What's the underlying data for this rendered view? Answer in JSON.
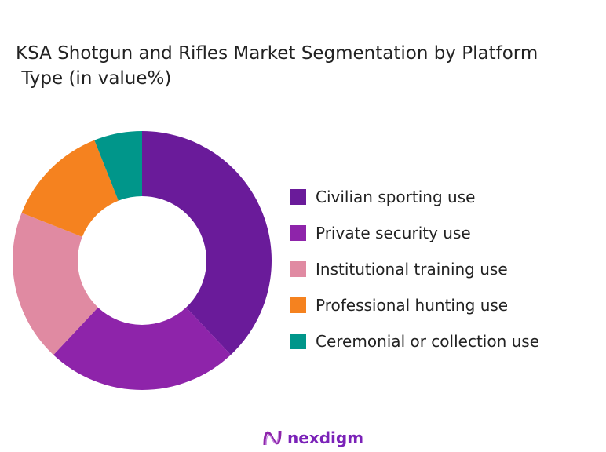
{
  "chart_data": {
    "type": "pie",
    "variant": "donut",
    "title": "KSA Shotgun and Rifles Market Segmentation by Platform\n Type (in value%)",
    "categories": [
      "Civilian sporting use",
      "Private security use",
      "Institutional training use",
      "Professional hunting use",
      "Ceremonial or collection use"
    ],
    "values": [
      38,
      24,
      19,
      13,
      6
    ],
    "colors": [
      "#6a1b9a",
      "#8e24aa",
      "#e08aa2",
      "#f5821f",
      "#00968a"
    ],
    "legend_position": "right"
  },
  "logo": {
    "text": "nexdigm"
  }
}
